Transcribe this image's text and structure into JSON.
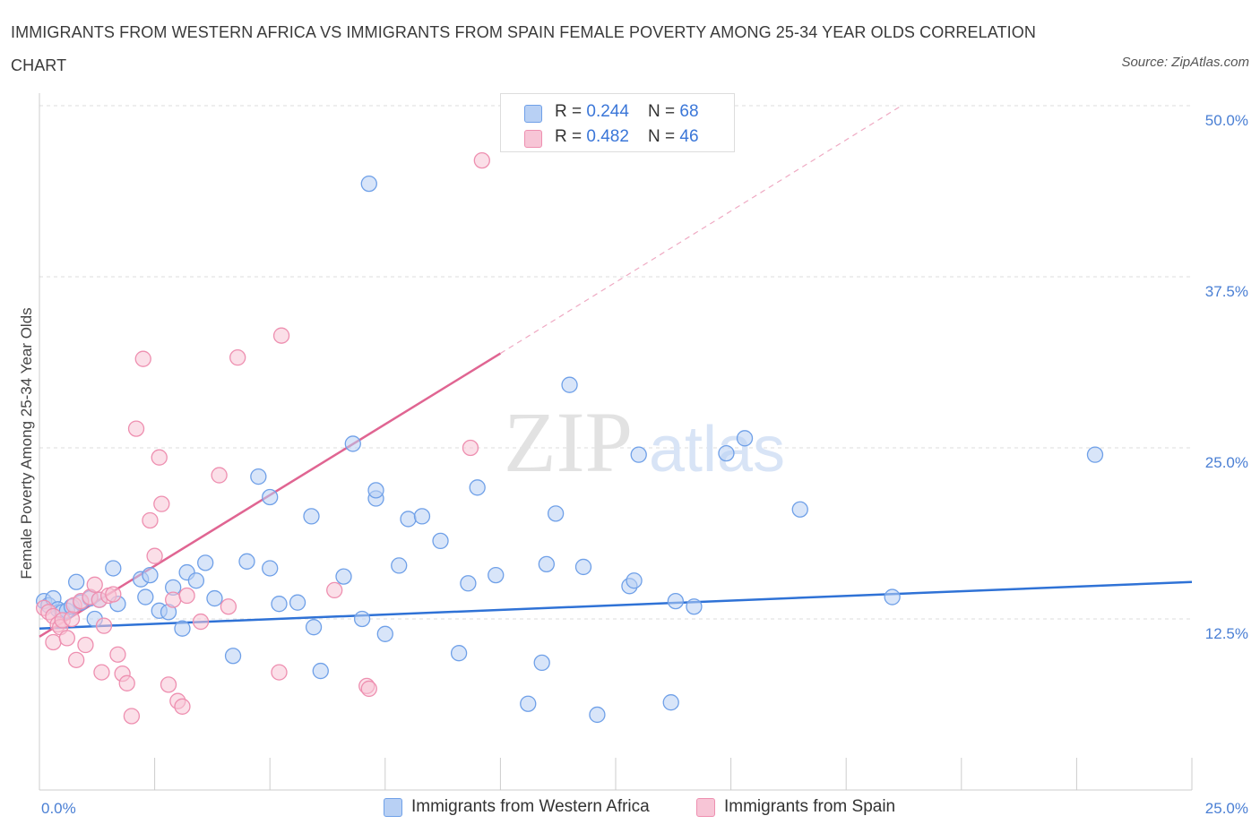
{
  "title": "IMMIGRANTS FROM WESTERN AFRICA VS IMMIGRANTS FROM SPAIN FEMALE POVERTY AMONG 25-34 YEAR OLDS CORRELATION CHART",
  "source": "Source: ZipAtlas.com",
  "watermark": {
    "zip": "ZIP",
    "atlas": "atlas"
  },
  "colors": {
    "blue": "#6fa0e8",
    "blue_fill": "#b8d0f4",
    "blue_line": "#2f72d6",
    "pink": "#ee8fb0",
    "pink_fill": "#f7c5d6",
    "pink_line": "#e06592",
    "tick_label": "#4a7fd4"
  },
  "legend_top": {
    "rows": [
      {
        "r_label": "R = ",
        "r_value": "0.244",
        "n_label": "N = ",
        "n_value": "68"
      },
      {
        "r_label": "R = ",
        "r_value": "0.482",
        "n_label": "N = ",
        "n_value": "46"
      }
    ]
  },
  "legend_bottom": {
    "items": [
      {
        "label": "Immigrants from Western Africa"
      },
      {
        "label": "Immigrants from Spain"
      }
    ]
  },
  "chart_data": {
    "type": "scatter",
    "title": "IMMIGRANTS FROM WESTERN AFRICA VS IMMIGRANTS FROM SPAIN FEMALE POVERTY AMONG 25-34 YEAR OLDS CORRELATION CHART",
    "xlabel": "",
    "ylabel": "Female Poverty Among 25-34 Year Olds",
    "xlim": [
      0,
      25
    ],
    "ylim": [
      0,
      50
    ],
    "x_tick_labels": [
      "0.0%",
      "25.0%"
    ],
    "y_tick_labels": [
      "12.5%",
      "25.0%",
      "37.5%",
      "50.0%"
    ],
    "y_ticks": [
      12.5,
      25.0,
      37.5,
      50.0
    ],
    "grid": true,
    "legend_placement": "bottom-center",
    "series": [
      {
        "name": "Immigrants from Western Africa",
        "color": "#6fa0e8",
        "trend": {
          "x": [
            0.0,
            25.0
          ],
          "y": [
            11.8,
            15.2
          ]
        },
        "points": [
          [
            0.1,
            13.8
          ],
          [
            0.2,
            13.5
          ],
          [
            0.3,
            14.0
          ],
          [
            0.4,
            13.2
          ],
          [
            0.5,
            13.0
          ],
          [
            0.6,
            13.1
          ],
          [
            0.7,
            13.4
          ],
          [
            0.8,
            15.2
          ],
          [
            0.9,
            13.7
          ],
          [
            1.1,
            14.0
          ],
          [
            1.2,
            12.5
          ],
          [
            1.3,
            13.9
          ],
          [
            1.6,
            16.2
          ],
          [
            1.7,
            13.6
          ],
          [
            2.2,
            15.4
          ],
          [
            2.3,
            14.1
          ],
          [
            2.4,
            15.7
          ],
          [
            2.6,
            13.1
          ],
          [
            2.8,
            13.0
          ],
          [
            2.9,
            14.8
          ],
          [
            3.1,
            11.8
          ],
          [
            3.2,
            15.9
          ],
          [
            3.4,
            15.3
          ],
          [
            3.6,
            16.6
          ],
          [
            3.8,
            14.0
          ],
          [
            4.2,
            9.8
          ],
          [
            4.5,
            16.7
          ],
          [
            4.75,
            22.9
          ],
          [
            5.0,
            21.4
          ],
          [
            5.0,
            16.2
          ],
          [
            5.2,
            13.6
          ],
          [
            5.6,
            13.7
          ],
          [
            5.9,
            20.0
          ],
          [
            5.95,
            11.9
          ],
          [
            6.1,
            8.7
          ],
          [
            6.6,
            15.6
          ],
          [
            6.8,
            25.3
          ],
          [
            7.15,
            44.3
          ],
          [
            7.3,
            21.3
          ],
          [
            7.0,
            12.5
          ],
          [
            7.5,
            11.4
          ],
          [
            7.3,
            21.9
          ],
          [
            7.8,
            16.4
          ],
          [
            8.0,
            19.8
          ],
          [
            8.3,
            20.0
          ],
          [
            8.7,
            18.2
          ],
          [
            9.1,
            10.0
          ],
          [
            9.3,
            15.1
          ],
          [
            9.5,
            22.1
          ],
          [
            9.9,
            15.7
          ],
          [
            10.6,
            6.3
          ],
          [
            10.9,
            9.3
          ],
          [
            11.0,
            16.5
          ],
          [
            11.2,
            20.2
          ],
          [
            11.5,
            29.6
          ],
          [
            11.8,
            16.3
          ],
          [
            12.1,
            5.5
          ],
          [
            12.8,
            14.9
          ],
          [
            12.9,
            15.3
          ],
          [
            13.0,
            24.5
          ],
          [
            13.7,
            6.4
          ],
          [
            13.8,
            13.8
          ],
          [
            14.2,
            13.4
          ],
          [
            14.9,
            24.6
          ],
          [
            15.3,
            25.7
          ],
          [
            16.5,
            20.5
          ],
          [
            18.5,
            14.1
          ],
          [
            22.9,
            24.5
          ]
        ]
      },
      {
        "name": "Immigrants from Spain",
        "color": "#ee8fb0",
        "trend": {
          "x": [
            0.0,
            10.0
          ],
          "y": [
            11.2,
            31.9
          ]
        },
        "trend_extension": {
          "x": [
            10.0,
            18.7
          ],
          "y": [
            31.9,
            50.0
          ]
        },
        "points": [
          [
            0.1,
            13.3
          ],
          [
            0.2,
            13.0
          ],
          [
            0.3,
            12.7
          ],
          [
            0.3,
            10.8
          ],
          [
            0.4,
            12.1
          ],
          [
            0.45,
            11.9
          ],
          [
            0.5,
            12.4
          ],
          [
            0.6,
            11.1
          ],
          [
            0.7,
            12.5
          ],
          [
            0.75,
            13.5
          ],
          [
            0.8,
            9.5
          ],
          [
            0.9,
            13.8
          ],
          [
            1.0,
            10.6
          ],
          [
            1.1,
            14.1
          ],
          [
            1.2,
            15.0
          ],
          [
            1.3,
            13.9
          ],
          [
            1.35,
            8.6
          ],
          [
            1.4,
            12.0
          ],
          [
            1.5,
            14.2
          ],
          [
            1.6,
            14.3
          ],
          [
            1.7,
            9.9
          ],
          [
            1.8,
            8.5
          ],
          [
            1.9,
            7.8
          ],
          [
            2.0,
            5.4
          ],
          [
            2.1,
            26.4
          ],
          [
            2.25,
            31.5
          ],
          [
            2.4,
            19.7
          ],
          [
            2.5,
            17.1
          ],
          [
            2.6,
            24.3
          ],
          [
            2.65,
            20.9
          ],
          [
            2.8,
            7.7
          ],
          [
            2.9,
            13.9
          ],
          [
            3.0,
            6.5
          ],
          [
            3.1,
            6.1
          ],
          [
            3.2,
            14.2
          ],
          [
            3.5,
            12.3
          ],
          [
            3.9,
            23.0
          ],
          [
            4.1,
            13.4
          ],
          [
            4.3,
            31.6
          ],
          [
            5.2,
            8.6
          ],
          [
            5.25,
            33.2
          ],
          [
            6.4,
            14.6
          ],
          [
            7.1,
            7.6
          ],
          [
            7.15,
            7.4
          ],
          [
            9.35,
            25.0
          ],
          [
            9.6,
            46.0
          ]
        ]
      }
    ]
  }
}
